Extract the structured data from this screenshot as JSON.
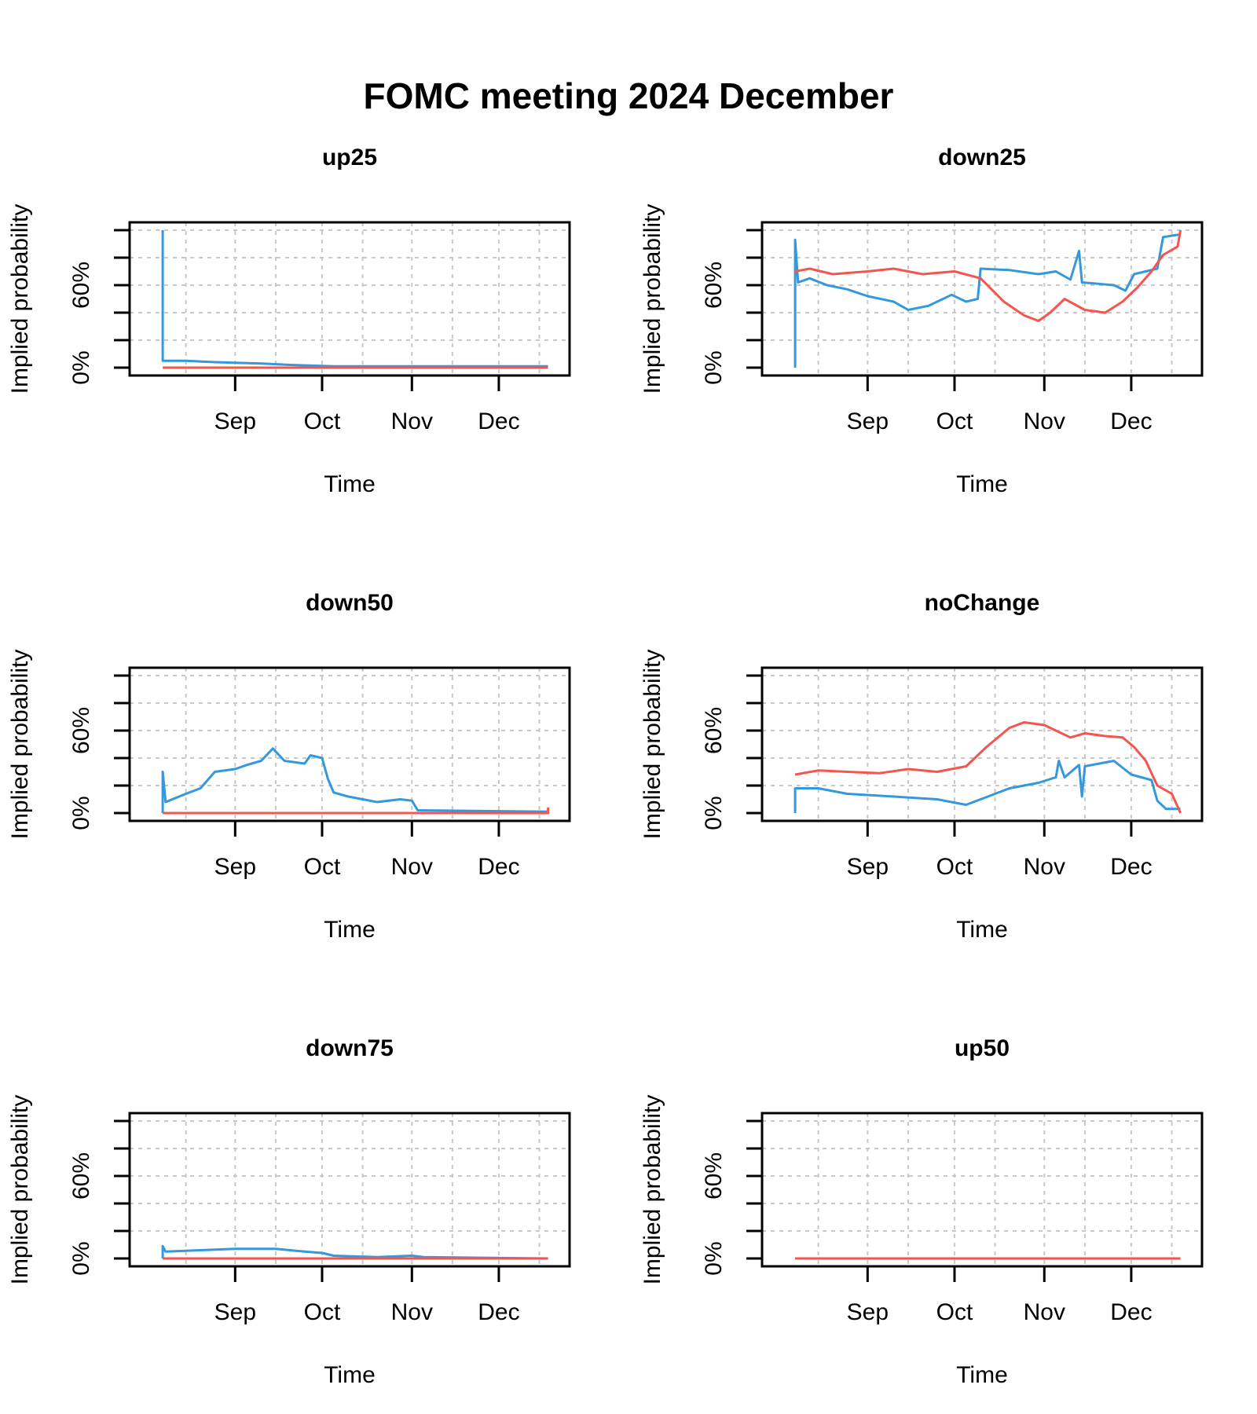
{
  "page_title": "FOMC meeting 2024 December",
  "chart_data": [
    {
      "type": "line",
      "title": "up25",
      "xlabel": "Time",
      "ylabel": "Implied probability",
      "x_ticks": [
        "Sep",
        "Oct",
        "Nov",
        "Dec"
      ],
      "y_ticks": [
        "0%",
        "60%"
      ],
      "xlim": [
        "2024-08-01",
        "2024-12-20"
      ],
      "ylim": [
        0,
        100
      ],
      "grid": true,
      "series": [
        {
          "color": "#3498db",
          "points": [
            [
              "2024-08-07",
              100
            ],
            [
              "2024-08-07",
              5
            ],
            [
              "2024-08-10",
              5
            ],
            [
              "2024-08-15",
              5
            ],
            [
              "2024-08-25",
              4
            ],
            [
              "2024-09-10",
              3
            ],
            [
              "2024-09-20",
              2
            ],
            [
              "2024-10-05",
              1
            ],
            [
              "2024-11-01",
              1
            ],
            [
              "2024-12-18",
              1
            ]
          ]
        },
        {
          "color": "#f4554f",
          "points": [
            [
              "2024-08-07",
              0
            ],
            [
              "2024-12-18",
              0
            ]
          ]
        }
      ]
    },
    {
      "type": "line",
      "title": "down25",
      "xlabel": "Time",
      "ylabel": "Implied probability",
      "x_ticks": [
        "Sep",
        "Oct",
        "Nov",
        "Dec"
      ],
      "y_ticks": [
        "0%",
        "60%"
      ],
      "xlim": [
        "2024-08-01",
        "2024-12-20"
      ],
      "ylim": [
        0,
        100
      ],
      "grid": true,
      "series": [
        {
          "color": "#3498db",
          "points": [
            [
              "2024-08-07",
              0
            ],
            [
              "2024-08-07",
              93
            ],
            [
              "2024-08-08",
              62
            ],
            [
              "2024-08-12",
              65
            ],
            [
              "2024-08-18",
              60
            ],
            [
              "2024-08-25",
              57
            ],
            [
              "2024-09-01",
              52
            ],
            [
              "2024-09-10",
              48
            ],
            [
              "2024-09-15",
              42
            ],
            [
              "2024-09-22",
              45
            ],
            [
              "2024-09-30",
              53
            ],
            [
              "2024-10-05",
              48
            ],
            [
              "2024-10-09",
              50
            ],
            [
              "2024-10-10",
              72
            ],
            [
              "2024-10-20",
              71
            ],
            [
              "2024-10-30",
              68
            ],
            [
              "2024-11-05",
              70
            ],
            [
              "2024-11-10",
              64
            ],
            [
              "2024-11-13",
              85
            ],
            [
              "2024-11-14",
              62
            ],
            [
              "2024-11-25",
              60
            ],
            [
              "2024-11-29",
              56
            ],
            [
              "2024-12-02",
              68
            ],
            [
              "2024-12-10",
              72
            ],
            [
              "2024-12-12",
              95
            ],
            [
              "2024-12-18",
              97
            ]
          ]
        },
        {
          "color": "#f4554f",
          "points": [
            [
              "2024-08-07",
              70
            ],
            [
              "2024-08-12",
              72
            ],
            [
              "2024-08-20",
              68
            ],
            [
              "2024-09-01",
              70
            ],
            [
              "2024-09-10",
              72
            ],
            [
              "2024-09-20",
              68
            ],
            [
              "2024-10-01",
              70
            ],
            [
              "2024-10-10",
              65
            ],
            [
              "2024-10-18",
              48
            ],
            [
              "2024-10-25",
              38
            ],
            [
              "2024-10-30",
              34
            ],
            [
              "2024-11-03",
              40
            ],
            [
              "2024-11-08",
              50
            ],
            [
              "2024-11-15",
              42
            ],
            [
              "2024-11-22",
              40
            ],
            [
              "2024-11-28",
              48
            ],
            [
              "2024-12-03",
              58
            ],
            [
              "2024-12-08",
              70
            ],
            [
              "2024-12-12",
              82
            ],
            [
              "2024-12-17",
              88
            ],
            [
              "2024-12-18",
              100
            ]
          ]
        }
      ]
    },
    {
      "type": "line",
      "title": "down50",
      "xlabel": "Time",
      "ylabel": "Implied probability",
      "x_ticks": [
        "Sep",
        "Oct",
        "Nov",
        "Dec"
      ],
      "y_ticks": [
        "0%",
        "60%"
      ],
      "xlim": [
        "2024-08-01",
        "2024-12-20"
      ],
      "ylim": [
        0,
        100
      ],
      "grid": true,
      "series": [
        {
          "color": "#3498db",
          "points": [
            [
              "2024-08-07",
              0
            ],
            [
              "2024-08-07",
              30
            ],
            [
              "2024-08-08",
              8
            ],
            [
              "2024-08-15",
              14
            ],
            [
              "2024-08-20",
              18
            ],
            [
              "2024-08-25",
              30
            ],
            [
              "2024-09-01",
              32
            ],
            [
              "2024-09-05",
              35
            ],
            [
              "2024-09-10",
              38
            ],
            [
              "2024-09-14",
              47
            ],
            [
              "2024-09-18",
              38
            ],
            [
              "2024-09-25",
              36
            ],
            [
              "2024-09-27",
              42
            ],
            [
              "2024-10-01",
              40
            ],
            [
              "2024-10-03",
              25
            ],
            [
              "2024-10-05",
              15
            ],
            [
              "2024-10-10",
              12
            ],
            [
              "2024-10-20",
              8
            ],
            [
              "2024-10-28",
              10
            ],
            [
              "2024-11-01",
              9
            ],
            [
              "2024-11-03",
              2
            ],
            [
              "2024-12-18",
              1
            ]
          ]
        },
        {
          "color": "#f4554f",
          "points": [
            [
              "2024-08-07",
              0
            ],
            [
              "2024-12-18",
              0
            ],
            [
              "2024-12-18",
              4
            ]
          ]
        }
      ]
    },
    {
      "type": "line",
      "title": "noChange",
      "xlabel": "Time",
      "ylabel": "Implied probability",
      "x_ticks": [
        "Sep",
        "Oct",
        "Nov",
        "Dec"
      ],
      "y_ticks": [
        "0%",
        "60%"
      ],
      "xlim": [
        "2024-08-01",
        "2024-12-20"
      ],
      "ylim": [
        0,
        100
      ],
      "grid": true,
      "series": [
        {
          "color": "#3498db",
          "points": [
            [
              "2024-08-07",
              0
            ],
            [
              "2024-08-07",
              18
            ],
            [
              "2024-08-15",
              18
            ],
            [
              "2024-08-25",
              14
            ],
            [
              "2024-09-10",
              12
            ],
            [
              "2024-09-25",
              10
            ],
            [
              "2024-10-05",
              6
            ],
            [
              "2024-10-10",
              10
            ],
            [
              "2024-10-20",
              18
            ],
            [
              "2024-10-30",
              22
            ],
            [
              "2024-11-05",
              26
            ],
            [
              "2024-11-06",
              38
            ],
            [
              "2024-11-08",
              26
            ],
            [
              "2024-11-13",
              35
            ],
            [
              "2024-11-14",
              12
            ],
            [
              "2024-11-15",
              34
            ],
            [
              "2024-11-25",
              38
            ],
            [
              "2024-12-01",
              28
            ],
            [
              "2024-12-08",
              24
            ],
            [
              "2024-12-10",
              9
            ],
            [
              "2024-12-13",
              3
            ],
            [
              "2024-12-18",
              3
            ]
          ]
        },
        {
          "color": "#f4554f",
          "points": [
            [
              "2024-08-07",
              28
            ],
            [
              "2024-08-15",
              31
            ],
            [
              "2024-08-25",
              30
            ],
            [
              "2024-09-05",
              29
            ],
            [
              "2024-09-15",
              32
            ],
            [
              "2024-09-25",
              30
            ],
            [
              "2024-10-05",
              34
            ],
            [
              "2024-10-12",
              48
            ],
            [
              "2024-10-20",
              62
            ],
            [
              "2024-10-25",
              66
            ],
            [
              "2024-11-01",
              64
            ],
            [
              "2024-11-05",
              60
            ],
            [
              "2024-11-10",
              55
            ],
            [
              "2024-11-15",
              58
            ],
            [
              "2024-11-22",
              56
            ],
            [
              "2024-11-28",
              55
            ],
            [
              "2024-12-02",
              48
            ],
            [
              "2024-12-06",
              38
            ],
            [
              "2024-12-10",
              20
            ],
            [
              "2024-12-15",
              14
            ],
            [
              "2024-12-18",
              0
            ]
          ]
        }
      ]
    },
    {
      "type": "line",
      "title": "down75",
      "xlabel": "Time",
      "ylabel": "Implied probability",
      "x_ticks": [
        "Sep",
        "Oct",
        "Nov",
        "Dec"
      ],
      "y_ticks": [
        "0%",
        "60%"
      ],
      "xlim": [
        "2024-08-01",
        "2024-12-20"
      ],
      "ylim": [
        0,
        100
      ],
      "grid": true,
      "series": [
        {
          "color": "#3498db",
          "points": [
            [
              "2024-08-07",
              0
            ],
            [
              "2024-08-07",
              9
            ],
            [
              "2024-08-08",
              5
            ],
            [
              "2024-08-20",
              6
            ],
            [
              "2024-09-01",
              7
            ],
            [
              "2024-09-15",
              7
            ],
            [
              "2024-09-25",
              5
            ],
            [
              "2024-10-01",
              4
            ],
            [
              "2024-10-05",
              2
            ],
            [
              "2024-10-20",
              1
            ],
            [
              "2024-11-01",
              2
            ],
            [
              "2024-11-05",
              1
            ],
            [
              "2024-12-18",
              0
            ]
          ]
        },
        {
          "color": "#f4554f",
          "points": [
            [
              "2024-08-07",
              0
            ],
            [
              "2024-12-18",
              0
            ]
          ]
        }
      ]
    },
    {
      "type": "line",
      "title": "up50",
      "xlabel": "Time",
      "ylabel": "Implied probability",
      "x_ticks": [
        "Sep",
        "Oct",
        "Nov",
        "Dec"
      ],
      "y_ticks": [
        "0%",
        "60%"
      ],
      "xlim": [
        "2024-08-01",
        "2024-12-20"
      ],
      "ylim": [
        0,
        100
      ],
      "grid": true,
      "series": [
        {
          "color": "#3498db",
          "points": [
            [
              "2024-08-07",
              0
            ],
            [
              "2024-12-18",
              0
            ]
          ]
        },
        {
          "color": "#f4554f",
          "points": [
            [
              "2024-08-07",
              0
            ],
            [
              "2024-12-18",
              0
            ]
          ]
        }
      ]
    }
  ]
}
